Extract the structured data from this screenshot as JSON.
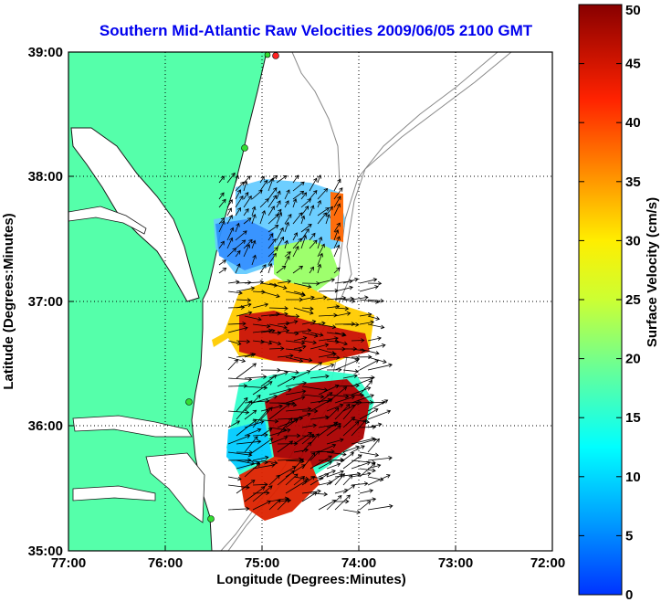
{
  "title": "Southern Mid-Atlantic Raw Velocities 2009/06/05 2100 GMT",
  "axes": {
    "xlabel": "Longitude (Degrees:Minutes)",
    "ylabel": "Latitude (Degrees:Minutes)",
    "x_ticks": [
      "77:00",
      "76:00",
      "75:00",
      "74:00",
      "73:00",
      "72:00"
    ],
    "y_ticks": [
      "39:00",
      "38:00",
      "37:00",
      "36:00",
      "35:00"
    ]
  },
  "colorbar": {
    "label": "Surface Velocity (cm/s)",
    "ticks": [
      "50",
      "45",
      "40",
      "35",
      "30",
      "25",
      "20",
      "15",
      "10",
      "5",
      "0"
    ],
    "range": [
      0,
      50
    ]
  },
  "colors": {
    "land": "#55ffaa",
    "water": "#ffffff",
    "coast": "#1a1a1a",
    "bathymetry": "#888888",
    "title": "#0000ee",
    "site_marker": "#33dd33",
    "site_marker_active": "#ff2222"
  },
  "chart_data": {
    "type": "map",
    "xlim": [
      -77,
      -72
    ],
    "ylim": [
      35,
      39
    ],
    "grid": true,
    "value_unit": "cm/s"
  }
}
